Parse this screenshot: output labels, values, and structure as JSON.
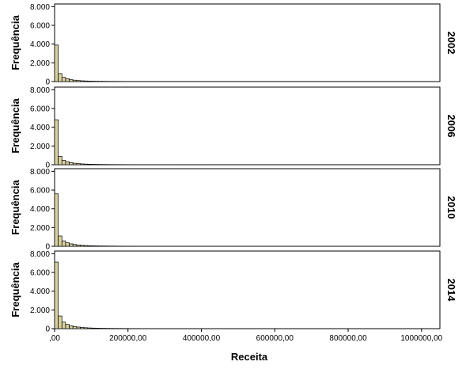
{
  "chart_data": {
    "type": "bar",
    "chart_kind": "faceted histogram",
    "xlabel": "Receita",
    "ylabel": "Frequência",
    "xlim": [
      0,
      1050000
    ],
    "ylim": [
      0,
      8200
    ],
    "bin_width": 10000,
    "y_ticks": [
      0,
      2000,
      4000,
      6000,
      8000
    ],
    "y_tick_labels": [
      "0",
      "2.000",
      "4.000",
      "6.000",
      "8.000"
    ],
    "x_ticks": [
      0,
      200000,
      400000,
      600000,
      800000,
      1000000
    ],
    "x_tick_labels": [
      ",00",
      "200000,00",
      "400000,00",
      "600000,00",
      "800000,00",
      "1000000,00"
    ],
    "bar_color": "#d8d0a0",
    "bar_stroke": "#000000",
    "grid": false,
    "panels": [
      {
        "label": "2002",
        "values": [
          3900,
          850,
          450,
          300,
          200,
          150,
          110,
          85,
          65,
          50,
          40,
          35,
          30,
          26,
          22,
          20,
          18,
          16,
          14,
          12,
          11,
          10,
          9,
          8,
          8,
          7,
          7,
          6,
          6,
          5,
          5,
          5,
          4,
          4,
          4,
          4,
          3,
          3,
          3,
          3,
          3,
          3,
          2,
          2,
          2,
          2,
          2,
          2,
          2,
          2,
          2,
          2,
          2,
          2,
          1,
          1,
          1,
          1,
          1,
          1,
          1,
          1,
          1,
          1,
          1,
          1,
          1,
          1,
          1,
          1,
          1,
          1,
          1,
          1,
          1,
          1,
          1,
          1,
          1,
          1,
          1,
          1,
          1,
          1,
          1,
          1,
          1,
          1,
          1,
          1,
          1,
          1,
          1,
          1,
          1,
          1,
          1,
          1,
          1,
          1
        ]
      },
      {
        "label": "2006",
        "values": [
          4800,
          900,
          480,
          320,
          220,
          160,
          120,
          90,
          70,
          55,
          45,
          38,
          32,
          28,
          24,
          21,
          19,
          17,
          15,
          13,
          12,
          11,
          10,
          9,
          8,
          8,
          7,
          7,
          6,
          6,
          5,
          5,
          5,
          4,
          4,
          4,
          4,
          3,
          3,
          3,
          3,
          3,
          3,
          2,
          2,
          2,
          2,
          2,
          2,
          2,
          2,
          2,
          2,
          2,
          2,
          1,
          1,
          1,
          1,
          1,
          1,
          1,
          1,
          1,
          1,
          1,
          1,
          1,
          1,
          1,
          1,
          1,
          1,
          1,
          1,
          1,
          1,
          1,
          1,
          1,
          1,
          1,
          1,
          1,
          1,
          1,
          1,
          1,
          1,
          1,
          1,
          1,
          1,
          1,
          1,
          1,
          1,
          1,
          1,
          1
        ]
      },
      {
        "label": "2010",
        "values": [
          5600,
          1100,
          580,
          380,
          260,
          190,
          140,
          105,
          80,
          62,
          50,
          42,
          35,
          30,
          26,
          23,
          20,
          18,
          16,
          14,
          13,
          12,
          11,
          10,
          9,
          8,
          8,
          7,
          7,
          6,
          6,
          5,
          5,
          5,
          4,
          4,
          4,
          4,
          3,
          3,
          3,
          3,
          3,
          3,
          2,
          2,
          2,
          2,
          2,
          2,
          2,
          2,
          2,
          2,
          2,
          2,
          1,
          1,
          1,
          1,
          1,
          1,
          1,
          1,
          1,
          1,
          1,
          1,
          1,
          1,
          1,
          1,
          1,
          1,
          1,
          1,
          1,
          1,
          1,
          1,
          1,
          1,
          1,
          1,
          1,
          1,
          1,
          1,
          1,
          1,
          1,
          1,
          1,
          1,
          1,
          1,
          1,
          1,
          1,
          1
        ]
      },
      {
        "label": "2014",
        "values": [
          7100,
          1350,
          700,
          450,
          310,
          230,
          170,
          130,
          100,
          78,
          62,
          52,
          44,
          38,
          32,
          28,
          25,
          22,
          20,
          18,
          16,
          15,
          14,
          13,
          12,
          11,
          10,
          9,
          9,
          8,
          8,
          7,
          7,
          6,
          6,
          6,
          5,
          5,
          5,
          5,
          4,
          4,
          4,
          4,
          4,
          3,
          3,
          3,
          3,
          3,
          3,
          3,
          3,
          2,
          2,
          2,
          2,
          2,
          2,
          2,
          2,
          2,
          2,
          2,
          2,
          2,
          2,
          1,
          1,
          1,
          1,
          1,
          1,
          1,
          1,
          1,
          1,
          1,
          1,
          1,
          1,
          1,
          1,
          1,
          1,
          1,
          1,
          1,
          1,
          1,
          1,
          1,
          1,
          1,
          1,
          1,
          1,
          1,
          1,
          1
        ]
      }
    ]
  }
}
